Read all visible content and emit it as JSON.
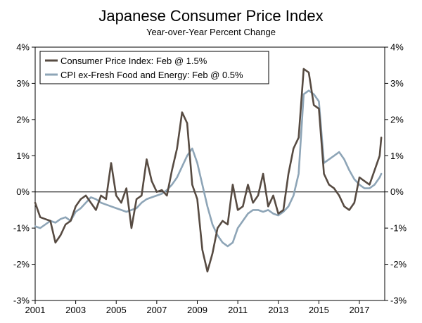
{
  "chart_data": {
    "type": "line",
    "title": "Japanese Consumer Price Index",
    "subtitle": "Year-over-Year Percent Change",
    "xlabel": "",
    "ylabel": "",
    "xlim": [
      2001.0,
      2018.25
    ],
    "ylim": [
      -3,
      4
    ],
    "grid": false,
    "zero_line": true,
    "legend_position": "top-left",
    "x_ticks": [
      2001,
      2003,
      2005,
      2007,
      2009,
      2011,
      2013,
      2015,
      2017
    ],
    "x_tick_labels": [
      "2001",
      "2003",
      "2005",
      "2007",
      "2009",
      "2011",
      "2013",
      "2015",
      "2017"
    ],
    "y_ticks": [
      -3,
      -2,
      -1,
      0,
      1,
      2,
      3,
      4
    ],
    "y_tick_labels_left": [
      "-3%",
      "-2%",
      "-1%",
      "0%",
      "1%",
      "2%",
      "3%",
      "4%"
    ],
    "y_tick_labels_right": [
      "-3%",
      "-2%",
      "-1%",
      "0%",
      "1%",
      "2%",
      "3%",
      "4%"
    ],
    "series": [
      {
        "name": "CPI ex-Fresh Food and Energy: Feb @ 0.5%",
        "color": "#8ea5b7",
        "x": [
          2001.0,
          2001.25,
          2001.5,
          2001.75,
          2002.0,
          2002.25,
          2002.5,
          2002.75,
          2003.0,
          2003.25,
          2003.5,
          2003.75,
          2004.0,
          2004.25,
          2004.5,
          2004.75,
          2005.0,
          2005.25,
          2005.5,
          2005.75,
          2006.0,
          2006.25,
          2006.5,
          2006.75,
          2007.0,
          2007.25,
          2007.5,
          2007.75,
          2008.0,
          2008.25,
          2008.5,
          2008.75,
          2009.0,
          2009.25,
          2009.5,
          2009.75,
          2010.0,
          2010.25,
          2010.5,
          2010.75,
          2011.0,
          2011.25,
          2011.5,
          2011.75,
          2012.0,
          2012.25,
          2012.5,
          2012.75,
          2013.0,
          2013.25,
          2013.5,
          2013.75,
          2014.0,
          2014.25,
          2014.5,
          2014.75,
          2015.0,
          2015.25,
          2015.5,
          2015.75,
          2016.0,
          2016.25,
          2016.5,
          2016.75,
          2017.0,
          2017.25,
          2017.5,
          2017.75,
          2018.0,
          2018.08
        ],
        "y": [
          -0.95,
          -1.0,
          -0.9,
          -0.8,
          -0.85,
          -0.75,
          -0.7,
          -0.8,
          -0.55,
          -0.45,
          -0.3,
          -0.15,
          -0.2,
          -0.3,
          -0.35,
          -0.4,
          -0.45,
          -0.5,
          -0.55,
          -0.5,
          -0.45,
          -0.3,
          -0.2,
          -0.15,
          -0.1,
          -0.05,
          0.05,
          0.2,
          0.4,
          0.7,
          1.0,
          1.2,
          0.8,
          0.2,
          -0.4,
          -0.9,
          -1.2,
          -1.4,
          -1.5,
          -1.4,
          -1.0,
          -0.8,
          -0.6,
          -0.5,
          -0.5,
          -0.55,
          -0.5,
          -0.6,
          -0.65,
          -0.55,
          -0.4,
          -0.1,
          0.5,
          2.7,
          2.8,
          2.7,
          2.5,
          0.8,
          0.9,
          1.0,
          1.1,
          0.9,
          0.6,
          0.35,
          0.2,
          0.1,
          0.1,
          0.2,
          0.4,
          0.5
        ]
      },
      {
        "name": "Consumer Price Index: Feb @ 1.5%",
        "color": "#574b42",
        "x": [
          2001.0,
          2001.25,
          2001.5,
          2001.75,
          2002.0,
          2002.25,
          2002.5,
          2002.75,
          2003.0,
          2003.25,
          2003.5,
          2003.75,
          2004.0,
          2004.25,
          2004.5,
          2004.75,
          2005.0,
          2005.25,
          2005.5,
          2005.75,
          2006.0,
          2006.25,
          2006.5,
          2006.75,
          2007.0,
          2007.25,
          2007.5,
          2007.75,
          2008.0,
          2008.25,
          2008.5,
          2008.75,
          2009.0,
          2009.25,
          2009.5,
          2009.75,
          2010.0,
          2010.25,
          2010.5,
          2010.75,
          2011.0,
          2011.25,
          2011.5,
          2011.75,
          2012.0,
          2012.25,
          2012.5,
          2012.75,
          2013.0,
          2013.25,
          2013.5,
          2013.75,
          2014.0,
          2014.25,
          2014.5,
          2014.75,
          2015.0,
          2015.25,
          2015.5,
          2015.75,
          2016.0,
          2016.25,
          2016.5,
          2016.75,
          2017.0,
          2017.25,
          2017.5,
          2017.75,
          2018.0,
          2018.08
        ],
        "y": [
          -0.3,
          -0.7,
          -0.75,
          -0.8,
          -1.4,
          -1.2,
          -0.9,
          -0.8,
          -0.4,
          -0.2,
          -0.1,
          -0.3,
          -0.5,
          -0.1,
          -0.2,
          0.8,
          -0.1,
          -0.3,
          0.1,
          -1.0,
          -0.2,
          -0.1,
          0.9,
          0.3,
          0.0,
          0.05,
          -0.1,
          0.6,
          1.2,
          2.2,
          1.9,
          0.2,
          -0.2,
          -1.6,
          -2.2,
          -1.7,
          -1.0,
          -0.8,
          -0.9,
          0.2,
          -0.5,
          -0.4,
          0.2,
          -0.3,
          -0.1,
          0.5,
          -0.4,
          -0.1,
          -0.6,
          -0.5,
          0.5,
          1.2,
          1.5,
          3.4,
          3.3,
          2.4,
          2.3,
          0.5,
          0.2,
          0.1,
          -0.1,
          -0.4,
          -0.5,
          -0.3,
          0.4,
          0.3,
          0.2,
          0.6,
          1.0,
          1.5
        ]
      }
    ]
  }
}
